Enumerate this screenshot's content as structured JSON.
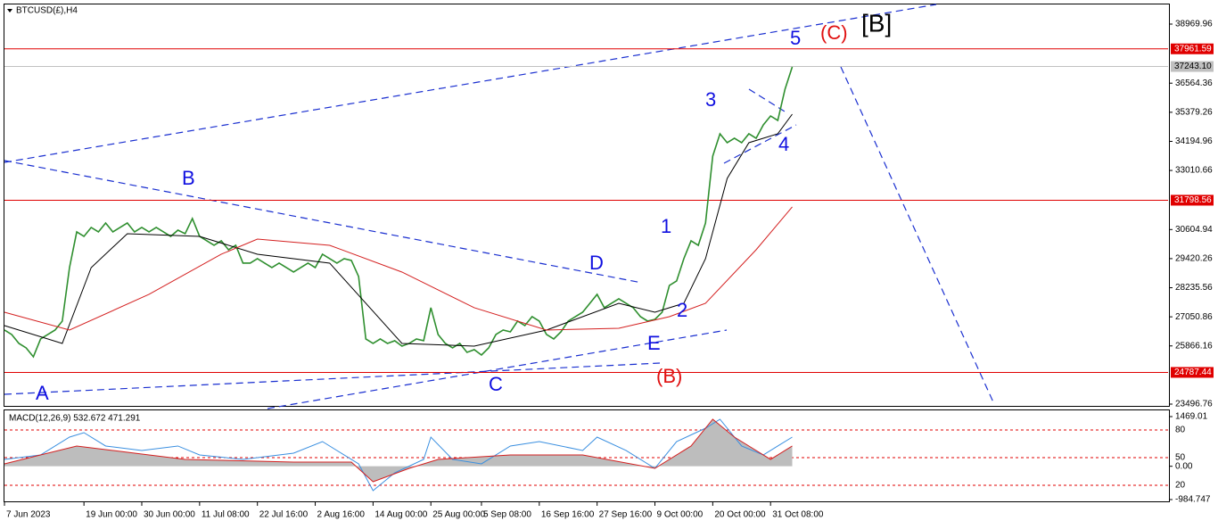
{
  "chart_data": {
    "type": "line",
    "title": "BTCUSD(£),H4",
    "xlim": [
      0,
      161
    ],
    "xticks": [
      {
        "value": 0,
        "label": "7 Jun 2023"
      },
      {
        "value": 11,
        "label": "19 Jun 00:00"
      },
      {
        "value": 19,
        "label": "30 Jun 00:00"
      },
      {
        "value": 27,
        "label": "11 Jul 08:00"
      },
      {
        "value": 35,
        "label": "22 Jul 16:00"
      },
      {
        "value": 43,
        "label": "2 Aug 16:00"
      },
      {
        "value": 51,
        "label": "14 Aug 00:00"
      },
      {
        "value": 59,
        "label": "25 Aug 00:00"
      },
      {
        "value": 66,
        "label": "5 Sep 08:00"
      },
      {
        "value": 74,
        "label": "16 Sep 16:00"
      },
      {
        "value": 82,
        "label": "27 Sep 16:00"
      },
      {
        "value": 90,
        "label": "9 Oct 00:00"
      },
      {
        "value": 98,
        "label": "20 Oct 00:00"
      },
      {
        "value": 106,
        "label": "31 Oct 08:00"
      }
    ],
    "ylim": [
      23496.76,
      38969.96
    ],
    "yticks": [
      38969.96,
      36564.36,
      35379.26,
      34194.96,
      33010.66,
      30604.94,
      29420.26,
      28235.56,
      27050.86,
      25866.16,
      23496.76
    ],
    "levels": [
      {
        "value": 37961.59,
        "color": "#e00000"
      },
      {
        "value": 37243.1,
        "label": "37243.10",
        "color": "#c0c0c0"
      },
      {
        "value": 31798.56,
        "color": "#e00000"
      },
      {
        "value": 24787.44,
        "color": "#e00000"
      }
    ],
    "series": [
      {
        "color": "#2f8f2f",
        "x": [
          0,
          1,
          2,
          3,
          4,
          5,
          6,
          7,
          8,
          9,
          10,
          11,
          12,
          13,
          14,
          15,
          16,
          17,
          18,
          19,
          20,
          21,
          22,
          23,
          24,
          25,
          26,
          27,
          28,
          29,
          30,
          31,
          32,
          33,
          34,
          35,
          36,
          37,
          38,
          39,
          40,
          41,
          42,
          43,
          44,
          45,
          46,
          47,
          48,
          49,
          50,
          51,
          52,
          53,
          54,
          55,
          56,
          57,
          58,
          59,
          60,
          61,
          62,
          63,
          64,
          65,
          66,
          67,
          68,
          69,
          70,
          71,
          72,
          73,
          74,
          75,
          76,
          77,
          78,
          79,
          80,
          81,
          82,
          83,
          84,
          85,
          86,
          87,
          88,
          89,
          90,
          91,
          92,
          93,
          94,
          95,
          96,
          97,
          98,
          99,
          100,
          101,
          102,
          103,
          104,
          105,
          106,
          107,
          108,
          109
        ],
        "values": [
          26513,
          26331,
          25968,
          25786,
          25423,
          26149,
          26331,
          26513,
          26876,
          29055,
          30508,
          30326,
          30689,
          30508,
          30871,
          30508,
          30689,
          30871,
          30508,
          30689,
          30508,
          30689,
          30508,
          30326,
          30580,
          30435,
          31053,
          30326,
          30145,
          29963,
          30145,
          29781,
          29963,
          29237,
          29237,
          29418,
          29237,
          29055,
          29237,
          29055,
          28873,
          29055,
          29237,
          29055,
          29600,
          29418,
          29237,
          29418,
          29346,
          28692,
          26149,
          25968,
          26149,
          25968,
          26077,
          25859,
          25968,
          26149,
          26077,
          27421,
          26331,
          25968,
          25786,
          25968,
          25605,
          25714,
          25496,
          25786,
          26331,
          26513,
          26440,
          26876,
          26694,
          27057,
          26876,
          26331,
          26149,
          26440,
          26876,
          27057,
          27239,
          27602,
          27965,
          27421,
          27602,
          27784,
          27602,
          27421,
          27057,
          26876,
          26948,
          27239,
          28329,
          28510,
          29418,
          30145,
          29963,
          30871,
          33595,
          34503,
          34140,
          34321,
          34140,
          34503,
          34321,
          34866,
          35229,
          35048,
          36319,
          37227
        ]
      },
      {
        "color": "#000000",
        "x": [
          0,
          8,
          12,
          17,
          27,
          35,
          45,
          50,
          55,
          65,
          75,
          85,
          90,
          94,
          97,
          100,
          103,
          107,
          109
        ],
        "values": [
          26694,
          25968,
          29055,
          30435,
          30326,
          29600,
          29237,
          27602,
          25968,
          25859,
          26513,
          27602,
          27239,
          27602,
          29418,
          32687,
          34140,
          34503,
          35302
        ]
      },
      {
        "color": "#d42020",
        "x": [
          0,
          9,
          20,
          30,
          35,
          45,
          55,
          65,
          75,
          85,
          92,
          97,
          104,
          109
        ],
        "values": [
          27239,
          26513,
          27965,
          29600,
          30217,
          29963,
          28873,
          27421,
          26513,
          26585,
          27057,
          27602,
          29781,
          31525
        ]
      }
    ],
    "annotations": [
      {
        "text": "A",
        "color": "#1010e0"
      },
      {
        "text": "B",
        "color": "#1010e0"
      },
      {
        "text": "C",
        "color": "#1010e0"
      },
      {
        "text": "D",
        "color": "#1010e0"
      },
      {
        "text": "E",
        "color": "#1010e0"
      },
      {
        "text": "(B)",
        "color": "#e01010"
      },
      {
        "text": "1",
        "color": "#1010e0"
      },
      {
        "text": "2",
        "color": "#1010e0"
      },
      {
        "text": "3",
        "color": "#1010e0"
      },
      {
        "text": "4",
        "color": "#1010e0"
      },
      {
        "text": "5",
        "color": "#1010e0"
      },
      {
        "text": "(C)",
        "color": "#e01010"
      },
      {
        "text": "[B]",
        "color": "#000000"
      }
    ],
    "macd": {
      "title": "MACD(12,26,9) 532.672 471.291",
      "ylim": [
        -984.747,
        1469.01
      ],
      "yticks": [
        1469.01,
        {
          "value": 0,
          "label": "0.00"
        },
        -984.747
      ],
      "level_labels": [
        "80",
        "50",
        "20"
      ],
      "series": [
        {
          "color": "#3a8fe0",
          "x": [
            0,
            5,
            9,
            11,
            14,
            19,
            24,
            27,
            33,
            40,
            44,
            49,
            51,
            54,
            58,
            59,
            62,
            66,
            70,
            74,
            80,
            82,
            86,
            90,
            93,
            97,
            99,
            102,
            105,
            107,
            109
          ],
          "values": [
            203,
            335,
            862,
            994,
            599,
            467,
            599,
            335,
            203,
            387,
            730,
            71,
            -721,
            -193,
            203,
            862,
            203,
            71,
            599,
            730,
            467,
            862,
            467,
            -61,
            730,
            1126,
            1390,
            599,
            335,
            599,
            862
          ]
        },
        {
          "color": "#d42020",
          "x": [
            0,
            10,
            15,
            25,
            40,
            48,
            51,
            56,
            60,
            70,
            80,
            90,
            95,
            98,
            101,
            106,
            109
          ],
          "values": [
            71,
            599,
            467,
            203,
            124,
            124,
            -457,
            -61,
            203,
            335,
            335,
            -61,
            599,
            1390,
            862,
            203,
            599
          ]
        }
      ]
    }
  }
}
